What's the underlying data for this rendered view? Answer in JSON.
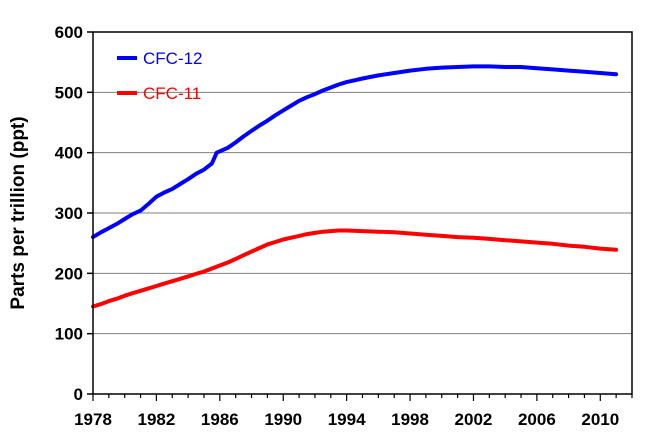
{
  "chart_data": {
    "type": "line",
    "title": "",
    "xlabel": "",
    "ylabel": "Parts per trillion (ppt)",
    "xlim": [
      1978,
      2012
    ],
    "ylim": [
      0,
      600
    ],
    "x_ticks": [
      1978,
      1982,
      1986,
      1990,
      1994,
      1998,
      2002,
      2006,
      2010
    ],
    "y_ticks": [
      0,
      100,
      200,
      300,
      400,
      500,
      600
    ],
    "grid": "horizontal",
    "legend": "top-left",
    "series": [
      {
        "name": "CFC-12",
        "color": "#0000ff",
        "points": [
          [
            1978.0,
            260
          ],
          [
            1978.5,
            268
          ],
          [
            1979.0,
            275
          ],
          [
            1979.5,
            282
          ],
          [
            1980.0,
            290
          ],
          [
            1980.5,
            298
          ],
          [
            1981.0,
            304
          ],
          [
            1981.5,
            315
          ],
          [
            1982.0,
            327
          ],
          [
            1982.5,
            334
          ],
          [
            1983.0,
            340
          ],
          [
            1983.5,
            348
          ],
          [
            1984.0,
            356
          ],
          [
            1984.5,
            365
          ],
          [
            1985.0,
            372
          ],
          [
            1985.5,
            382
          ],
          [
            1985.8,
            400
          ],
          [
            1986.5,
            408
          ],
          [
            1987.0,
            417
          ],
          [
            1987.5,
            427
          ],
          [
            1988.0,
            436
          ],
          [
            1988.5,
            445
          ],
          [
            1989.0,
            453
          ],
          [
            1989.5,
            462
          ],
          [
            1990.0,
            470
          ],
          [
            1990.5,
            478
          ],
          [
            1991.0,
            486
          ],
          [
            1991.5,
            492
          ],
          [
            1992.0,
            497
          ],
          [
            1992.5,
            503
          ],
          [
            1993.0,
            508
          ],
          [
            1993.5,
            513
          ],
          [
            1994.0,
            517
          ],
          [
            1994.5,
            520
          ],
          [
            1995.0,
            523
          ],
          [
            1996.0,
            528
          ],
          [
            1997.0,
            532
          ],
          [
            1998.0,
            536
          ],
          [
            1999.0,
            539
          ],
          [
            2000.0,
            541
          ],
          [
            2001.0,
            542
          ],
          [
            2002.0,
            543
          ],
          [
            2003.0,
            543
          ],
          [
            2004.0,
            542
          ],
          [
            2005.0,
            542
          ],
          [
            2006.0,
            540
          ],
          [
            2007.0,
            538
          ],
          [
            2008.0,
            536
          ],
          [
            2009.0,
            534
          ],
          [
            2010.0,
            532
          ],
          [
            2011.0,
            530
          ]
        ]
      },
      {
        "name": "CFC-11",
        "color": "#ff0000",
        "points": [
          [
            1978.0,
            145
          ],
          [
            1978.5,
            149
          ],
          [
            1979.0,
            154
          ],
          [
            1979.5,
            158
          ],
          [
            1980.0,
            163
          ],
          [
            1980.5,
            167
          ],
          [
            1981.0,
            171
          ],
          [
            1981.5,
            175
          ],
          [
            1982.0,
            179
          ],
          [
            1982.5,
            183
          ],
          [
            1983.0,
            187
          ],
          [
            1983.5,
            191
          ],
          [
            1984.0,
            195
          ],
          [
            1984.5,
            199
          ],
          [
            1985.0,
            203
          ],
          [
            1985.5,
            208
          ],
          [
            1986.0,
            213
          ],
          [
            1986.5,
            218
          ],
          [
            1987.0,
            224
          ],
          [
            1987.5,
            230
          ],
          [
            1988.0,
            236
          ],
          [
            1988.5,
            242
          ],
          [
            1989.0,
            248
          ],
          [
            1989.5,
            252
          ],
          [
            1990.0,
            256
          ],
          [
            1990.5,
            259
          ],
          [
            1991.0,
            262
          ],
          [
            1991.5,
            265
          ],
          [
            1992.0,
            267
          ],
          [
            1992.5,
            269
          ],
          [
            1993.0,
            270
          ],
          [
            1993.5,
            271
          ],
          [
            1994.0,
            271
          ],
          [
            1995.0,
            270
          ],
          [
            1996.0,
            269
          ],
          [
            1997.0,
            268
          ],
          [
            1998.0,
            266
          ],
          [
            1999.0,
            264
          ],
          [
            2000.0,
            262
          ],
          [
            2001.0,
            260
          ],
          [
            2002.0,
            259
          ],
          [
            2003.0,
            257
          ],
          [
            2004.0,
            255
          ],
          [
            2005.0,
            253
          ],
          [
            2006.0,
            251
          ],
          [
            2007.0,
            249
          ],
          [
            2008.0,
            246
          ],
          [
            2009.0,
            244
          ],
          [
            2010.0,
            241
          ],
          [
            2011.0,
            239
          ]
        ]
      }
    ]
  }
}
